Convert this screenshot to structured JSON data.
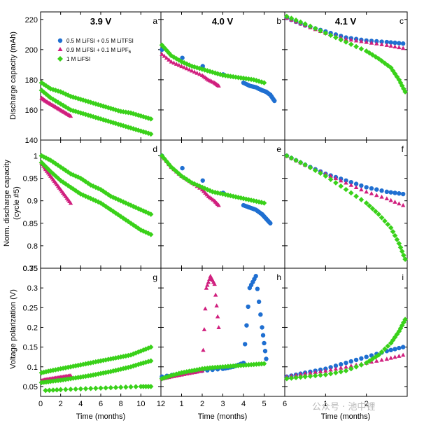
{
  "legend": [
    {
      "label": "0.5 M LiFSI + 0.5 M LiTFSI",
      "marker": "circle",
      "color": "#1f6fd1"
    },
    {
      "label": "0.9 M LiFSI + 0.1 M LiPF",
      "label_subscript": "6",
      "marker": "triangle",
      "color": "#d01f7e"
    },
    {
      "label": "1 M LiFSI",
      "marker": "diamond",
      "color": "#3ad11a"
    }
  ],
  "column_titles": [
    "3.9 V",
    "4.0 V",
    "4.1 V"
  ],
  "panel_letters": [
    "a",
    "b",
    "c",
    "d",
    "e",
    "f",
    "g",
    "h",
    "i"
  ],
  "row_labels": [
    "Discharge capacity (mAh)",
    "Norm. discharge capacity",
    "(cycle #5)",
    "Voltage polarization (V)"
  ],
  "x_label": "Time (months)",
  "watermark": "公众号 · 池中锂",
  "chart_data": {
    "type": "scatter",
    "layout": "3x3 grid, shared x per column, shared y per row",
    "grid": false,
    "legend_position": "top-left of panel a",
    "columns": [
      {
        "title": "3.9 V",
        "xlim": [
          0,
          12
        ],
        "xticks": [
          0,
          2,
          4,
          6,
          8,
          10,
          12
        ]
      },
      {
        "title": "4.0 V",
        "xlim": [
          0,
          6
        ],
        "xticks": [
          1,
          2,
          3,
          4,
          5,
          6
        ]
      },
      {
        "title": "4.1 V",
        "xlim": [
          0,
          3
        ],
        "xticks": [
          1,
          2
        ]
      }
    ],
    "rows": [
      {
        "ylabel": "Discharge capacity (mAh)",
        "ylim": [
          140,
          225
        ],
        "yticks": [
          140,
          160,
          180,
          200,
          220
        ]
      },
      {
        "ylabel": "Norm. discharge capacity (cycle #5)",
        "ylim": [
          0.75,
          1.035
        ],
        "yticks": [
          0.8,
          0.85,
          0.9,
          0.95,
          1
        ]
      },
      {
        "ylabel": "Voltage polarization (V)",
        "ylim": [
          0.025,
          0.35
        ],
        "yticks": [
          0.05,
          0.1,
          0.15,
          0.2,
          0.25,
          0.3,
          0.35
        ]
      }
    ],
    "y_extra_tick": {
      "row": 1,
      "label": "0.75"
    },
    "panels": [
      {
        "letter": "a",
        "series": [
          {
            "key": "tfsi",
            "x": [],
            "y": []
          },
          {
            "key": "pf6",
            "x": [
              0.1,
              0.5,
              1,
              1.5,
              2,
              2.5,
              3
            ],
            "y": [
              168,
              166,
              164,
              162,
              160,
              158,
              156
            ]
          },
          {
            "key": "lifsi_upper",
            "x": [
              0.1,
              1,
              2,
              3,
              4,
              5,
              6,
              7,
              8,
              9,
              10,
              11
            ],
            "y": [
              178,
              174,
              172,
              169,
              167,
              165,
              163,
              161,
              159,
              158,
              156,
              154
            ]
          },
          {
            "key": "lifsi_lower",
            "x": [
              0.1,
              1,
              2,
              3,
              4,
              5,
              6,
              7,
              8,
              9,
              10,
              11
            ],
            "y": [
              173,
              168,
              164,
              160,
              158,
              156,
              154,
              152,
              150,
              148,
              146,
              144
            ]
          }
        ]
      },
      {
        "letter": "b",
        "series": [
          {
            "key": "tfsi",
            "x": [
              0.05,
              4,
              4.3,
              4.6,
              4.9,
              5.1,
              5.3,
              5.5
            ],
            "y": [
              200,
              178,
              176,
              175,
              173,
              172,
              170,
              166
            ]
          },
          {
            "key": "pf6",
            "x": [
              0.05,
              0.5,
              1,
              1.5,
              2,
              2.3,
              2.6,
              2.8
            ],
            "y": [
              197,
              192,
              189,
              186,
              183,
              180,
              178,
              176
            ]
          },
          {
            "key": "lifsi",
            "x": [
              0.05,
              0.5,
              1,
              1.5,
              2,
              2.5,
              3,
              3.5,
              4,
              4.5,
              5
            ],
            "y": [
              203,
              196,
              192,
              189,
              187,
              185,
              183,
              182,
              181,
              180,
              178
            ]
          }
        ]
      },
      {
        "letter": "c",
        "series": [
          {
            "key": "tfsi",
            "x": [
              0.05,
              0.5,
              1,
              1.5,
              2,
              2.5,
              2.9
            ],
            "y": [
              221,
              216,
              212,
              208,
              206,
              205,
              204
            ]
          },
          {
            "key": "pf6",
            "x": [
              0.05,
              0.5,
              1,
              1.5,
              2,
              2.5,
              2.9
            ],
            "y": [
              221,
              216,
              211,
              207,
              205,
              203,
              201
            ]
          },
          {
            "key": "lifsi",
            "x": [
              0.05,
              0.5,
              1,
              1.5,
              2,
              2.3,
              2.6,
              2.8,
              2.95
            ],
            "y": [
              222,
              217,
              211,
              205,
              199,
              194,
              188,
              180,
              172
            ]
          }
        ]
      },
      {
        "letter": "d",
        "series": [
          {
            "key": "tfsi",
            "x": [],
            "y": []
          },
          {
            "key": "pf6",
            "x": [
              0.1,
              0.5,
              1,
              1.5,
              2,
              2.5,
              3
            ],
            "y": [
              0.985,
              0.97,
              0.955,
              0.94,
              0.925,
              0.91,
              0.895
            ]
          },
          {
            "key": "lifsi_upper",
            "x": [
              0.1,
              1,
              2,
              3,
              4,
              5,
              6,
              7,
              8,
              9,
              10,
              11
            ],
            "y": [
              1.0,
              0.99,
              0.975,
              0.96,
              0.95,
              0.935,
              0.925,
              0.91,
              0.9,
              0.89,
              0.88,
              0.87
            ]
          },
          {
            "key": "lifsi_lower",
            "x": [
              0.1,
              1,
              2,
              3,
              4,
              5,
              6,
              7,
              8,
              9,
              10,
              11
            ],
            "y": [
              0.985,
              0.965,
              0.945,
              0.93,
              0.915,
              0.905,
              0.895,
              0.88,
              0.865,
              0.85,
              0.835,
              0.825
            ]
          }
        ]
      },
      {
        "letter": "e",
        "series": [
          {
            "key": "tfsi",
            "x": [
              0.05,
              4,
              4.3,
              4.6,
              4.9,
              5.1,
              5.3
            ],
            "y": [
              1.0,
              0.89,
              0.885,
              0.88,
              0.87,
              0.86,
              0.85
            ]
          },
          {
            "key": "pf6",
            "x": [
              0.05,
              0.5,
              1,
              1.5,
              2,
              2.3,
              2.6,
              2.8
            ],
            "y": [
              1.0,
              0.975,
              0.955,
              0.94,
              0.925,
              0.91,
              0.9,
              0.89
            ]
          },
          {
            "key": "lifsi",
            "x": [
              0.05,
              0.5,
              1,
              1.5,
              2,
              2.5,
              3,
              3.5,
              4,
              4.5,
              5
            ],
            "y": [
              1.0,
              0.975,
              0.955,
              0.94,
              0.93,
              0.92,
              0.915,
              0.91,
              0.905,
              0.9,
              0.895
            ]
          }
        ]
      },
      {
        "letter": "f",
        "series": [
          {
            "key": "tfsi",
            "x": [
              0.05,
              0.5,
              1,
              1.5,
              2,
              2.5,
              2.9
            ],
            "y": [
              1.0,
              0.98,
              0.96,
              0.945,
              0.93,
              0.92,
              0.915
            ]
          },
          {
            "key": "pf6",
            "x": [
              0.05,
              0.5,
              1,
              1.5,
              2,
              2.5,
              2.9
            ],
            "y": [
              1.0,
              0.98,
              0.96,
              0.94,
              0.92,
              0.905,
              0.89
            ]
          },
          {
            "key": "lifsi",
            "x": [
              0.05,
              0.5,
              1,
              1.5,
              2,
              2.3,
              2.6,
              2.8,
              2.95
            ],
            "y": [
              1.0,
              0.98,
              0.955,
              0.925,
              0.895,
              0.87,
              0.84,
              0.805,
              0.77
            ]
          }
        ]
      },
      {
        "letter": "g",
        "series": [
          {
            "key": "tfsi",
            "x": [],
            "y": []
          },
          {
            "key": "pf6",
            "x": [
              0.1,
              0.5,
              1,
              1.5,
              2,
              2.5,
              3
            ],
            "y": [
              0.065,
              0.068,
              0.07,
              0.072,
              0.074,
              0.076,
              0.078
            ]
          },
          {
            "key": "lifsi_upper",
            "x": [
              0.1,
              1,
              2,
              3,
              4,
              5,
              6,
              7,
              8,
              9,
              10,
              11
            ],
            "y": [
              0.085,
              0.09,
              0.095,
              0.1,
              0.105,
              0.11,
              0.115,
              0.12,
              0.125,
              0.13,
              0.14,
              0.15
            ]
          },
          {
            "key": "lifsi_lower",
            "x": [
              0.1,
              1,
              2,
              3,
              4,
              5,
              6,
              7,
              8,
              9,
              10,
              11
            ],
            "y": [
              0.06,
              0.063,
              0.066,
              0.07,
              0.074,
              0.078,
              0.083,
              0.088,
              0.094,
              0.1,
              0.108,
              0.115
            ]
          },
          {
            "key": "lifsi_base",
            "x": [
              0.5,
              2,
              4,
              6,
              8,
              10,
              11
            ],
            "y": [
              0.04,
              0.042,
              0.044,
              0.046,
              0.048,
              0.05,
              0.05
            ]
          }
        ]
      },
      {
        "letter": "h",
        "series": [
          {
            "key": "tfsi",
            "x": [
              0.05,
              1,
              2,
              3,
              3.5,
              4,
              4.3,
              4.6,
              4.9,
              5.1
            ],
            "y": [
              0.075,
              0.083,
              0.09,
              0.095,
              0.1,
              0.11,
              0.3,
              0.33,
              0.2,
              0.12
            ]
          },
          {
            "key": "pf6",
            "x": [
              0.05,
              0.5,
              1,
              1.5,
              2,
              2.2,
              2.4,
              2.6,
              2.8
            ],
            "y": [
              0.07,
              0.075,
              0.08,
              0.085,
              0.09,
              0.3,
              0.33,
              0.31,
              0.2
            ]
          },
          {
            "key": "lifsi",
            "x": [
              0.05,
              0.5,
              1,
              1.5,
              2,
              2.5,
              3,
              3.5,
              4,
              4.5,
              5
            ],
            "y": [
              0.07,
              0.078,
              0.085,
              0.09,
              0.095,
              0.098,
              0.1,
              0.102,
              0.104,
              0.106,
              0.108
            ]
          }
        ]
      },
      {
        "letter": "i",
        "series": [
          {
            "key": "tfsi",
            "x": [
              0.05,
              0.5,
              1,
              1.5,
              2,
              2.5,
              2.9
            ],
            "y": [
              0.075,
              0.085,
              0.095,
              0.11,
              0.125,
              0.14,
              0.15
            ]
          },
          {
            "key": "pf6",
            "x": [
              0.05,
              0.5,
              1,
              1.5,
              2,
              2.5,
              2.9
            ],
            "y": [
              0.075,
              0.083,
              0.09,
              0.1,
              0.11,
              0.12,
              0.13
            ]
          },
          {
            "key": "lifsi",
            "x": [
              0.05,
              0.5,
              1,
              1.5,
              2,
              2.3,
              2.6,
              2.8,
              2.95
            ],
            "y": [
              0.07,
              0.075,
              0.08,
              0.09,
              0.11,
              0.13,
              0.16,
              0.19,
              0.22
            ]
          }
        ]
      }
    ]
  }
}
